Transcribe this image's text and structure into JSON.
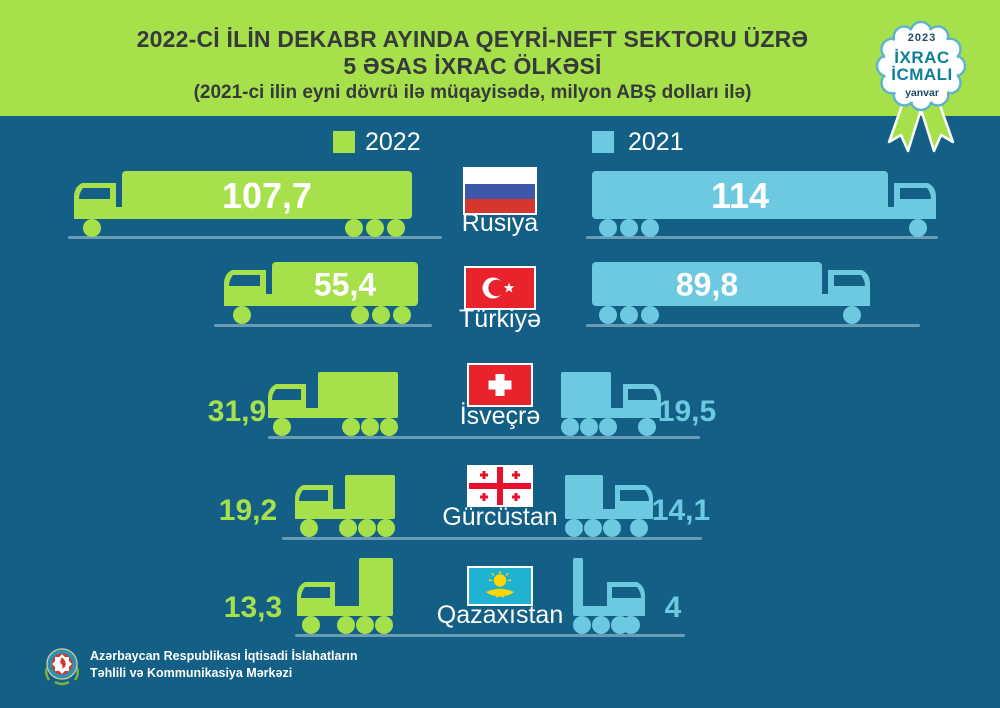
{
  "header": {
    "title_line1": "2022-Cİ İLİN DEKABR AYINDA QEYRİ-NEFT SEKTORU ÜZRƏ",
    "title_line2": "5 ƏSAS İXRAC ÖLKƏSİ",
    "subtitle": "(2021-ci ilin eyni dövrü ilə müqayisədə, milyon ABŞ dolları ilə)"
  },
  "badge": {
    "year": "2023",
    "line1": "İXRAC",
    "line2": "İCMALI",
    "month": "yanvar"
  },
  "legend": {
    "items": [
      {
        "label": "2022",
        "color": "#A6E14C"
      },
      {
        "label": "2021",
        "color": "#6CC9DF"
      }
    ]
  },
  "rows": [
    {
      "country": "Rusiya",
      "flag": "russia",
      "v2022": "107,7",
      "v2021": "114"
    },
    {
      "country": "Türkiyə",
      "flag": "turkey",
      "v2022": "55,4",
      "v2021": "89,8"
    },
    {
      "country": "İsveçrə",
      "flag": "switzerland",
      "v2022": "31,9",
      "v2021": "19,5"
    },
    {
      "country": "Gürcüstan",
      "flag": "georgia",
      "v2022": "19,2",
      "v2021": "14,1"
    },
    {
      "country": "Qazaxıstan",
      "flag": "kazakhstan",
      "v2022": "13,3",
      "v2021": "4"
    }
  ],
  "footer": {
    "org_line1": "Azərbaycan Respublikası İqtisadi İslahatların",
    "org_line2": "Təhlili və Kommunikasiya Mərkəzi"
  },
  "colors": {
    "background": "#135F85",
    "header": "#A6E14C",
    "green": "#A6E14C",
    "blue": "#6CC9DF",
    "title_text": "#363A3B",
    "badge_teal": "#0E7E99",
    "badge_navy": "#1B4A66"
  },
  "chart_data": {
    "type": "bar",
    "title": "2022-ci ilin dekabr ayında qeyri-neft sektoru üzrə 5 əsas ixrac ölkəsi",
    "subtitle": "2021-ci ilin eyni dövrü ilə müqayisədə, milyon ABŞ dolları ilə",
    "categories": [
      "Rusiya",
      "Türkiyə",
      "İsveçrə",
      "Gürcüstan",
      "Qazaxıstan"
    ],
    "series": [
      {
        "name": "2022",
        "values": [
          107.7,
          55.4,
          31.9,
          19.2,
          13.3
        ],
        "color": "#A6E14C"
      },
      {
        "name": "2021",
        "values": [
          114,
          89.8,
          19.5,
          14.1,
          4
        ],
        "color": "#6CC9DF"
      }
    ],
    "unit": "milyon ABŞ dolları",
    "legend_position": "top",
    "orientation": "horizontal-pictogram-trucks"
  }
}
